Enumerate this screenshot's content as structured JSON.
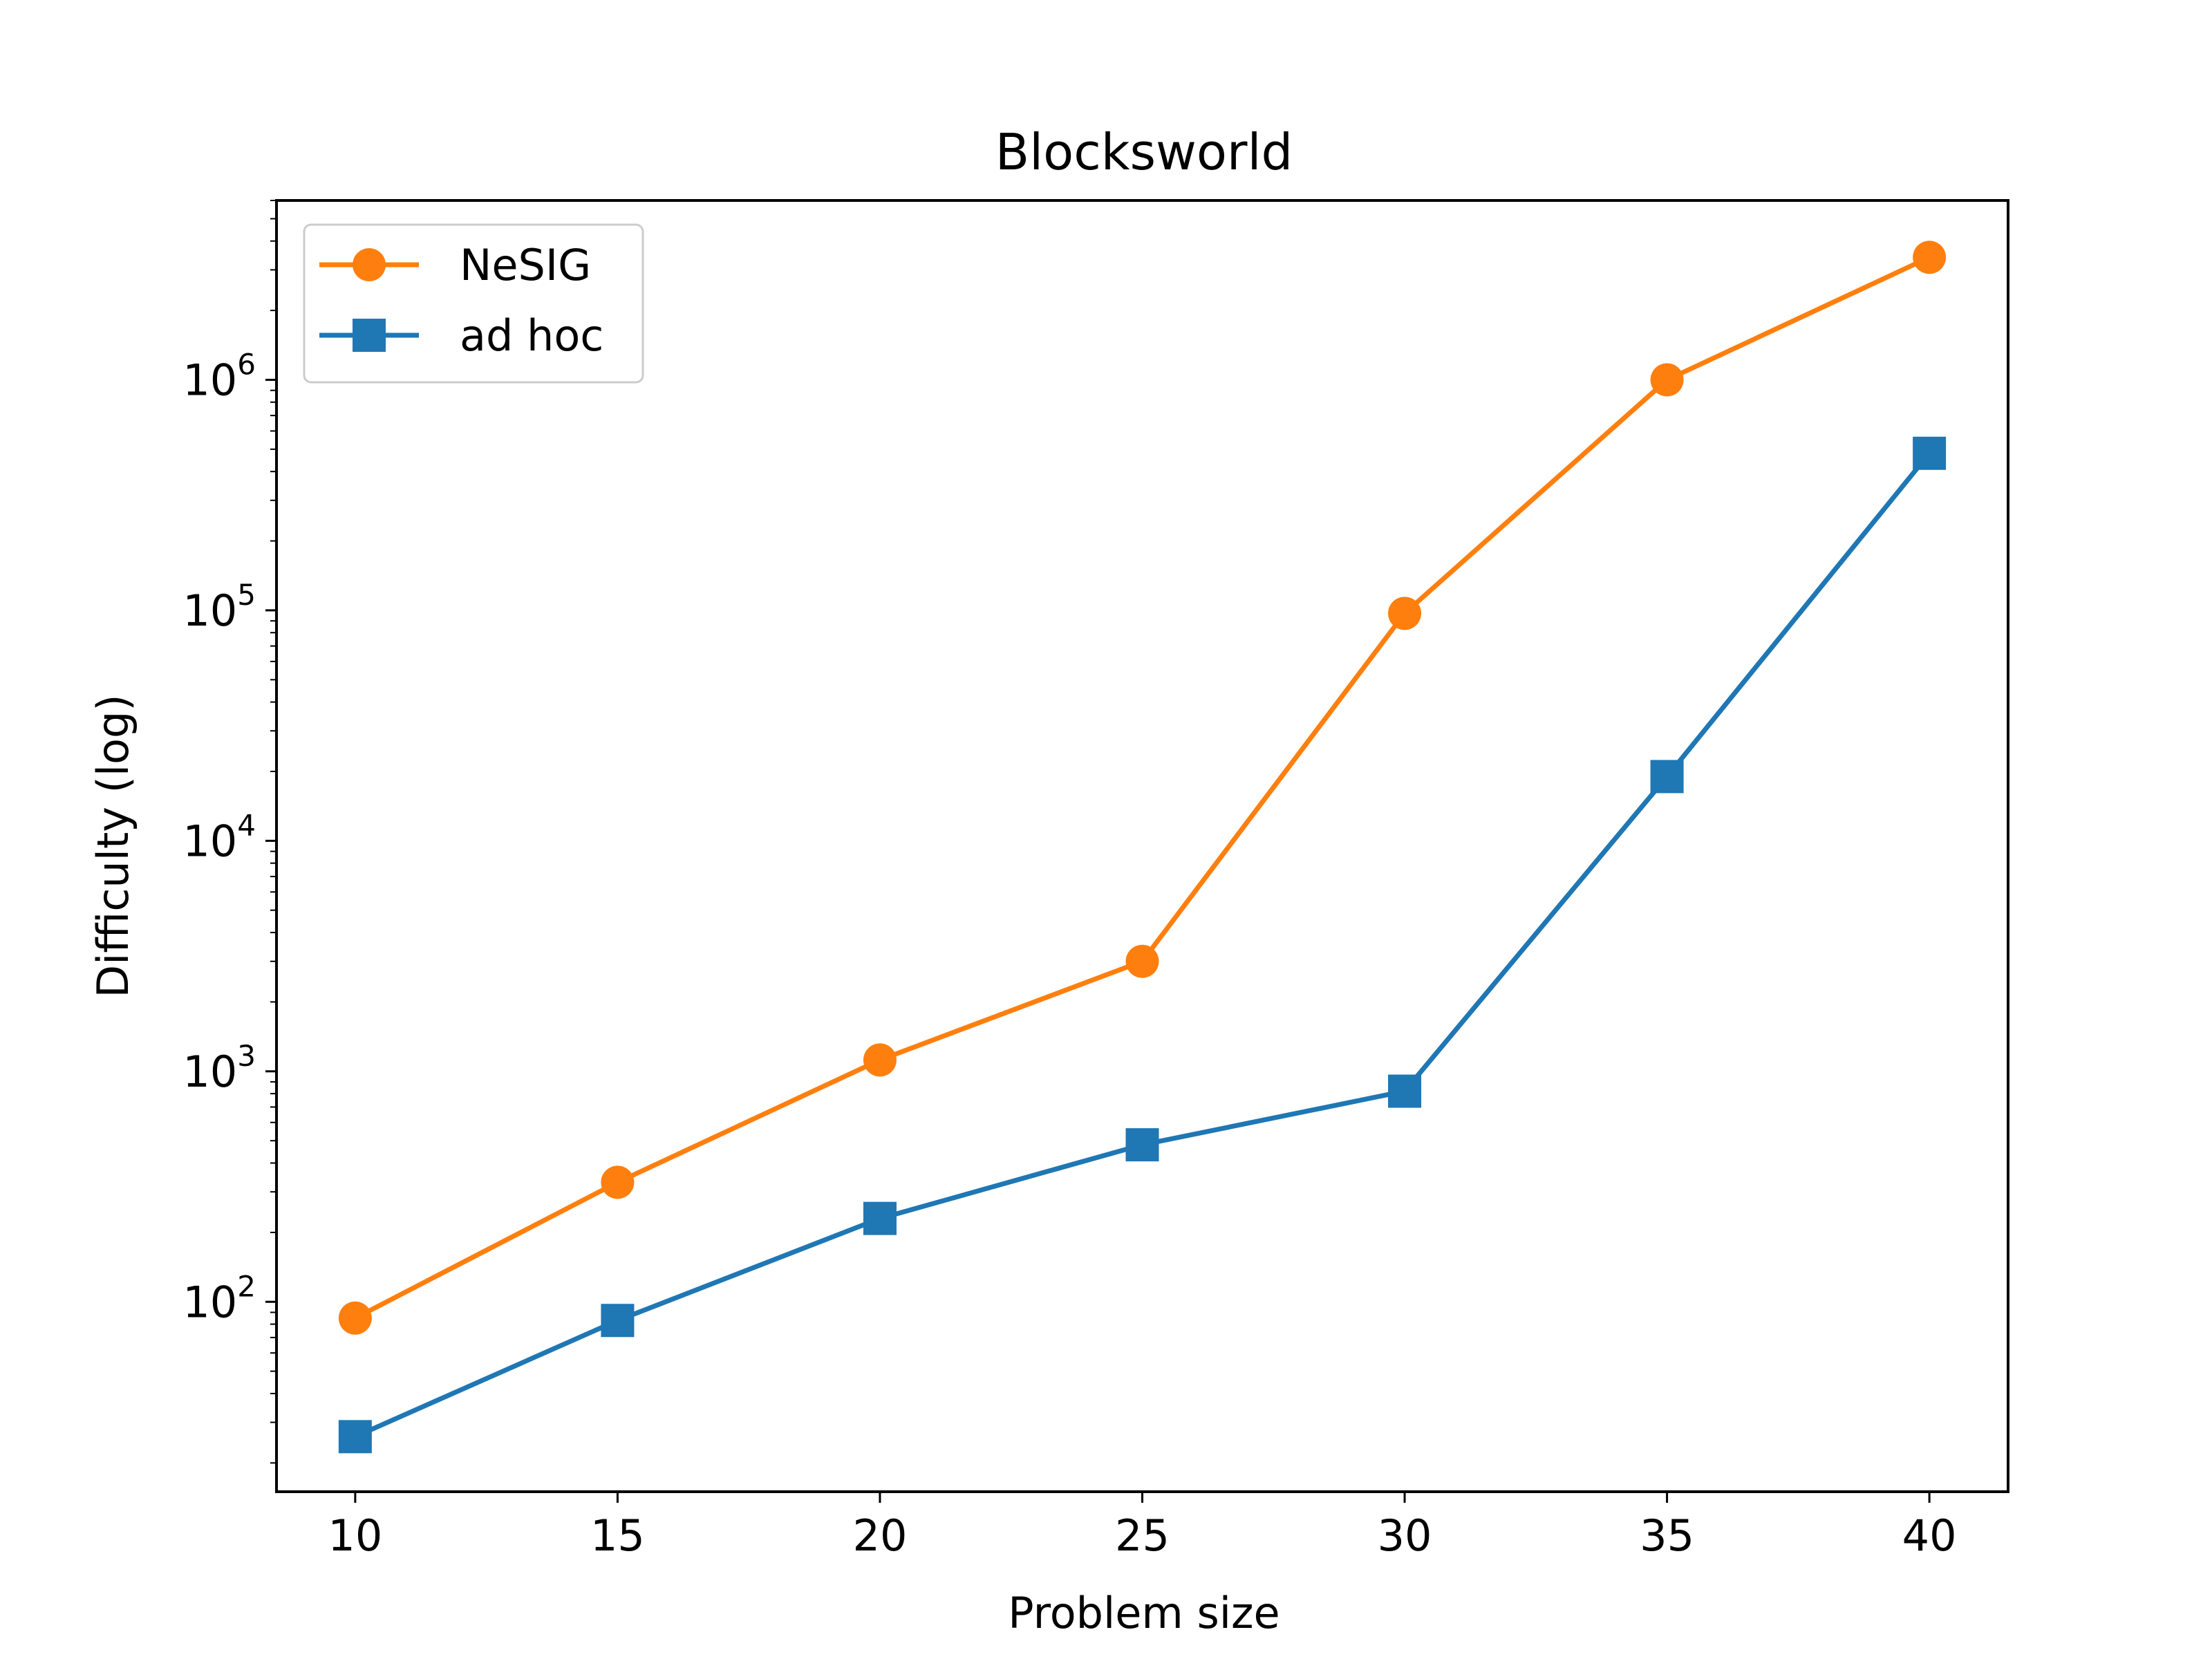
{
  "chart_data": {
    "type": "line",
    "title": "Blocksworld",
    "xlabel": "Problem size",
    "ylabel": "Difficulty (log)",
    "yscale": "log",
    "x": [
      10,
      15,
      20,
      25,
      30,
      35,
      40
    ],
    "xlim": [
      8.5,
      41.5
    ],
    "ylim": [
      15,
      6000000
    ],
    "xticks": [
      10,
      15,
      20,
      25,
      30,
      35,
      40
    ],
    "yticks": [
      {
        "value": 100,
        "base": "10",
        "exp": "2"
      },
      {
        "value": 1000,
        "base": "10",
        "exp": "3"
      },
      {
        "value": 10000,
        "base": "10",
        "exp": "4"
      },
      {
        "value": 100000,
        "base": "10",
        "exp": "5"
      },
      {
        "value": 1000000,
        "base": "10",
        "exp": "6"
      }
    ],
    "grid": false,
    "legend_position": "top-left",
    "series": [
      {
        "name": "NeSIG",
        "color": "#ff7f0e",
        "marker": "circle",
        "values": [
          85,
          330,
          1120,
          3000,
          97000,
          1000000,
          3400000
        ]
      },
      {
        "name": "ad hoc",
        "color": "#1f77b4",
        "marker": "square",
        "values": [
          26,
          83,
          230,
          480,
          820,
          19000,
          480000
        ]
      }
    ]
  }
}
